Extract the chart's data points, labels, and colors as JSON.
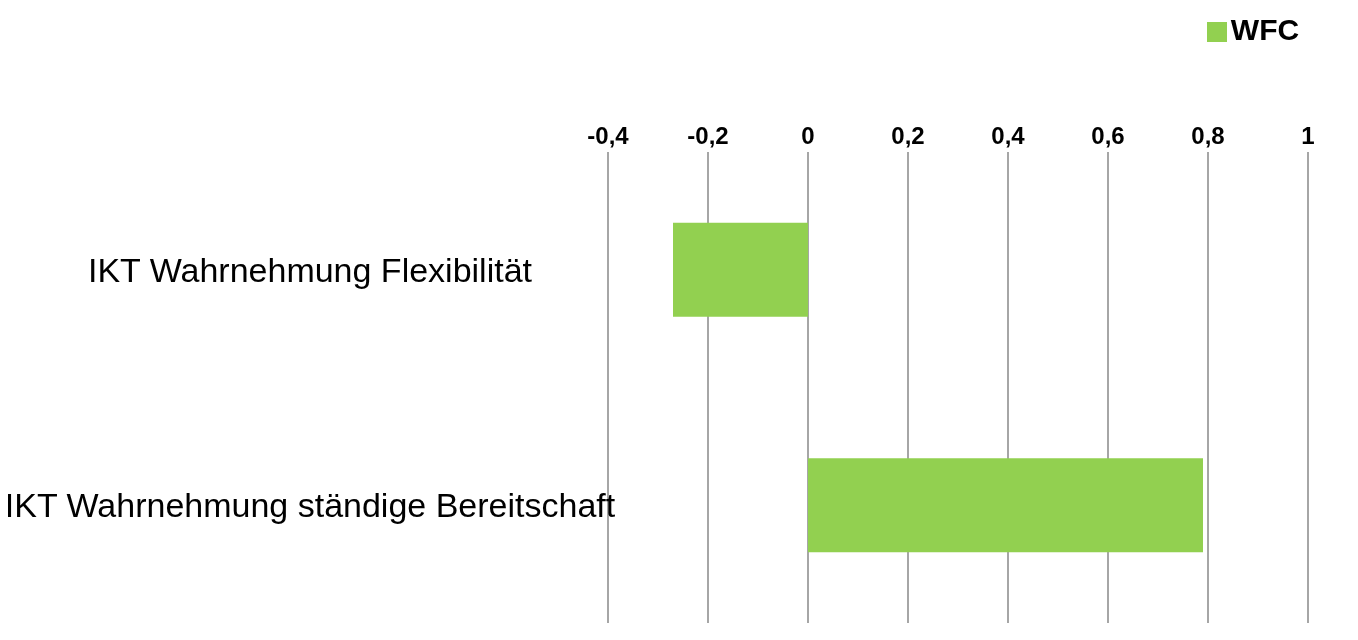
{
  "chart_data": {
    "type": "bar",
    "orientation": "horizontal",
    "categories": [
      "IKT Wahrnehmung Flexibilität",
      "IKT Wahrnehmung ständige Bereitschaft"
    ],
    "series": [
      {
        "name": "WFC",
        "color": "#92d050",
        "values": [
          -0.27,
          0.79
        ]
      }
    ],
    "xlim": [
      -0.4,
      1
    ],
    "xticks": [
      {
        "value": -0.4,
        "label": "-0,4"
      },
      {
        "value": -0.2,
        "label": "-0,2"
      },
      0,
      {
        "value": 0.2,
        "label": "0,2"
      },
      {
        "value": 0.4,
        "label": "0,4"
      },
      {
        "value": 0.6,
        "label": "0,6"
      },
      {
        "value": 0.8,
        "label": "0,8"
      },
      1
    ],
    "grid": "x",
    "legend": "top"
  }
}
